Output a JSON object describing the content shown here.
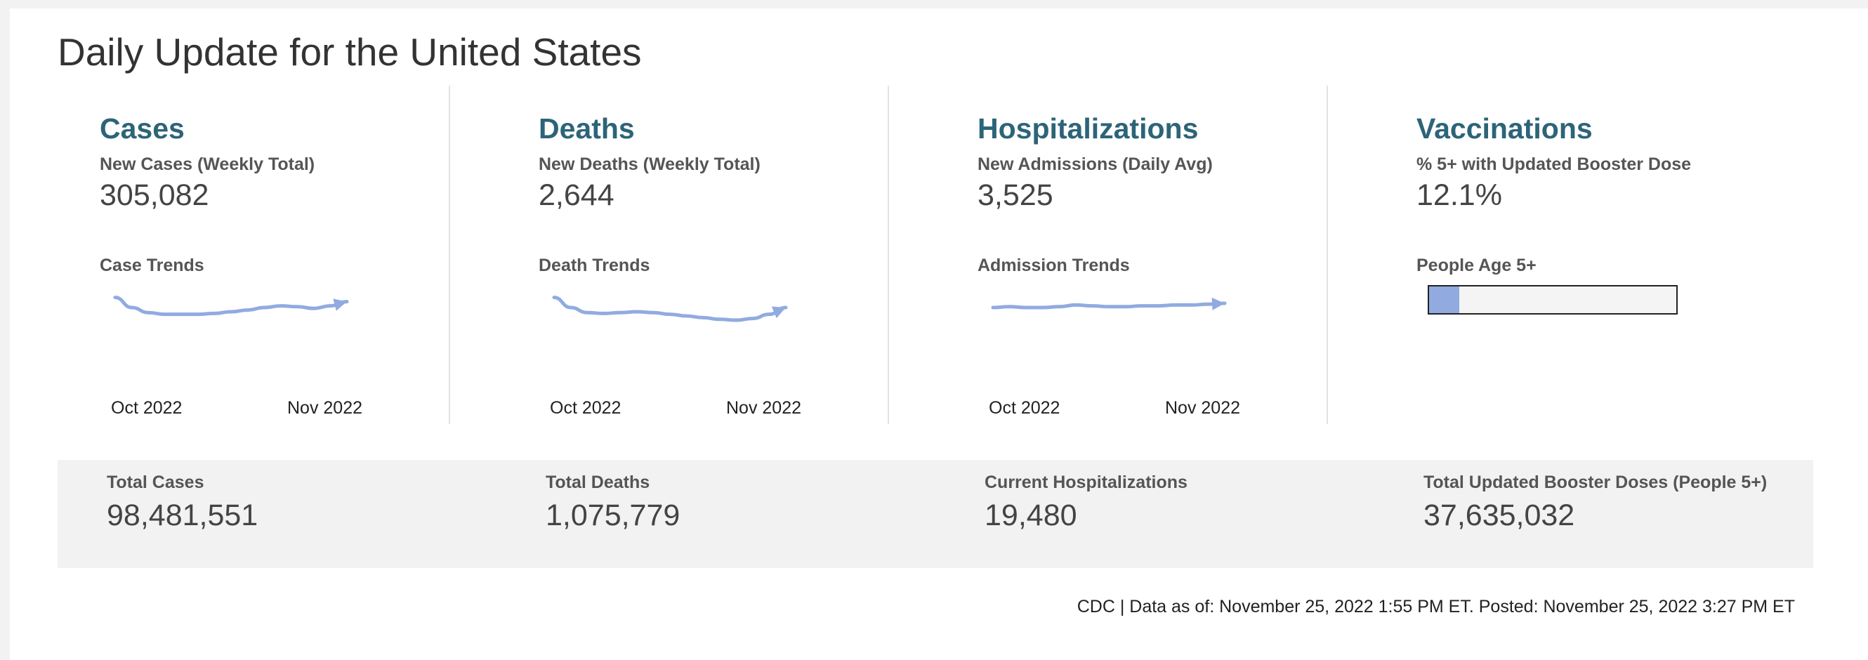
{
  "page": {
    "title": "Daily Update for the United States"
  },
  "metrics": [
    {
      "title": "Cases",
      "subtitle": "New Cases (Weekly Total)",
      "value": "305,082",
      "trend_label": "Case Trends"
    },
    {
      "title": "Deaths",
      "subtitle": "New Deaths (Weekly Total)",
      "value": "2,644",
      "trend_label": "Death Trends"
    },
    {
      "title": "Hospitalizations",
      "subtitle": "New Admissions (Daily Avg)",
      "value": "3,525",
      "trend_label": "Admission Trends"
    },
    {
      "title": "Vaccinations",
      "subtitle": "% 5+ with Updated Booster Dose",
      "value": "12.1%",
      "trend_label": "People Age 5+"
    }
  ],
  "totals": [
    {
      "label": "Total Cases",
      "value": "98,481,551"
    },
    {
      "label": "Total Deaths",
      "value": "1,075,779"
    },
    {
      "label": "Current Hospitalizations",
      "value": "19,480"
    },
    {
      "label": "Total Updated Booster Doses (People 5+)",
      "value": "37,635,032"
    }
  ],
  "footer": {
    "text": "CDC | Data as of: November 25, 2022 1:55 PM ET. Posted: November 25, 2022 3:27 PM ET"
  },
  "colors": {
    "accent_title": "#2c6478",
    "trend_line": "#91abe0",
    "panel_bg": "#f2f2f2"
  },
  "chart_data": [
    {
      "type": "line",
      "title": "Case Trends",
      "x_ticks": [
        "Oct 2022",
        "Nov 2022"
      ],
      "series": [
        {
          "values": [
            82,
            70,
            64,
            62,
            62,
            62,
            63,
            65,
            67,
            70,
            72,
            71,
            69,
            72,
            77
          ]
        }
      ],
      "end_marker": "arrow"
    },
    {
      "type": "line",
      "title": "Death Trends",
      "x_ticks": [
        "Oct 2022",
        "Nov 2022"
      ],
      "series": [
        {
          "values": [
            82,
            70,
            64,
            63,
            64,
            65,
            64,
            62,
            60,
            58,
            56,
            55,
            57,
            62,
            70
          ]
        }
      ],
      "end_marker": "arrow"
    },
    {
      "type": "line",
      "title": "Admission Trends",
      "x_ticks": [
        "Oct 2022",
        "Nov 2022"
      ],
      "series": [
        {
          "values": [
            70,
            71,
            70,
            70,
            71,
            73,
            72,
            71,
            71,
            72,
            72,
            73,
            73,
            74,
            75
          ]
        }
      ],
      "end_marker": "arrow"
    },
    {
      "type": "bar",
      "title": "People Age 5+",
      "values": [
        12.1
      ],
      "unit": "%",
      "ylim": [
        0,
        100
      ]
    }
  ]
}
